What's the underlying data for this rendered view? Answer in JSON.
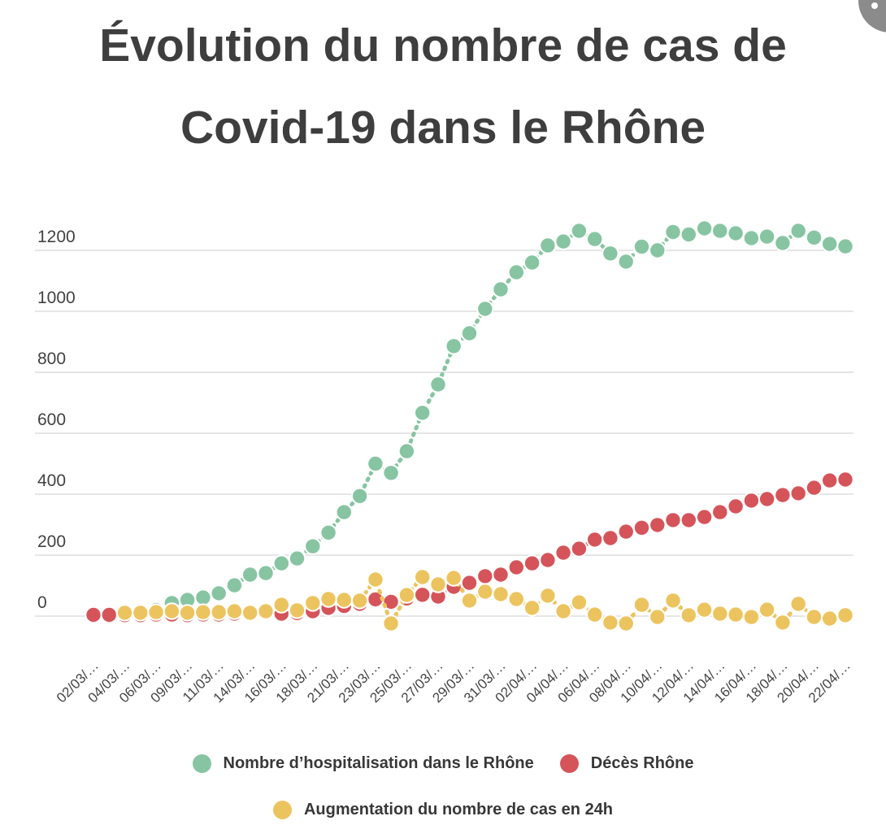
{
  "header": {
    "title_line1": "Évolution du nombre de cas de",
    "title_line2": "Covid-19 dans le Rhône",
    "title_color": "#3e3e3e"
  },
  "corner_button": {
    "color": "#8b8b8b",
    "icon": "info-dot"
  },
  "chart_data": {
    "type": "line",
    "title": "Évolution du nombre de cas de Covid-19 dans le Rhône",
    "xlabel": "",
    "ylabel": "",
    "y_ticks": [
      0,
      200,
      400,
      600,
      800,
      1000,
      1200
    ],
    "ylim": [
      -60,
      1330
    ],
    "grid": true,
    "gridline_color": "#dedede",
    "axis_text_color": "#454545",
    "legend_position": "bottom",
    "x_labels_every": 2,
    "x_tick_labels": [
      "02/03/…",
      "04/03/…",
      "06/03/…",
      "09/03/…",
      "11/03/…",
      "14/03/…",
      "16/03/…",
      "18/03/…",
      "21/03/…",
      "23/03/…",
      "25/03/…",
      "27/03/…",
      "29/03/…",
      "31/03/…",
      "02/04/…",
      "04/04/…",
      "06/04/…",
      "08/04/…",
      "10/04/…",
      "12/04/…",
      "14/04/…",
      "16/04/…",
      "18/04/…",
      "20/04/…",
      "22/04/…"
    ],
    "series": [
      {
        "name": "Nombre d’hospitalisation dans le Rhône",
        "color": "#87c5a2",
        "marker": "circle",
        "line_style": "dashed",
        "values": [
          2,
          5,
          8,
          12,
          20,
          43,
          53,
          61,
          75,
          101,
          136,
          141,
          173,
          189,
          229,
          274,
          341,
          394,
          500,
          470,
          541,
          667,
          760,
          886,
          928,
          1008,
          1072,
          1128,
          1160,
          1216,
          1229,
          1264,
          1237,
          1190,
          1163,
          1212,
          1200,
          1260,
          1252,
          1272,
          1264,
          1256,
          1240,
          1245,
          1224,
          1264,
          1242,
          1221,
          1213
        ]
      },
      {
        "name": "Décès Rhône",
        "color": "#d5545a",
        "marker": "circle",
        "line_style": "dashed",
        "values": [
          4,
          4,
          3,
          3,
          5,
          5,
          3,
          5,
          5,
          8,
          11,
          11,
          8,
          10,
          16,
          27,
          33,
          40,
          55,
          47,
          58,
          70,
          64,
          96,
          109,
          131,
          136,
          160,
          173,
          184,
          208,
          221,
          251,
          256,
          277,
          290,
          299,
          315,
          315,
          325,
          341,
          360,
          379,
          384,
          397,
          403,
          421,
          445,
          448
        ]
      },
      {
        "name": "Augmentation du nombre de cas en 24h",
        "color": "#ecc45f",
        "marker": "circle",
        "line_style": "dashed",
        "values": [
          null,
          null,
          11,
          11,
          13,
          16,
          11,
          13,
          13,
          16,
          11,
          16,
          37,
          19,
          43,
          56,
          53,
          51,
          120,
          -24,
          69,
          128,
          104,
          125,
          51,
          80,
          72,
          56,
          27,
          67,
          16,
          45,
          5,
          -21,
          -24,
          37,
          -3,
          51,
          3,
          21,
          8,
          5,
          -3,
          21,
          -21,
          40,
          -3,
          -8,
          3
        ]
      }
    ]
  }
}
